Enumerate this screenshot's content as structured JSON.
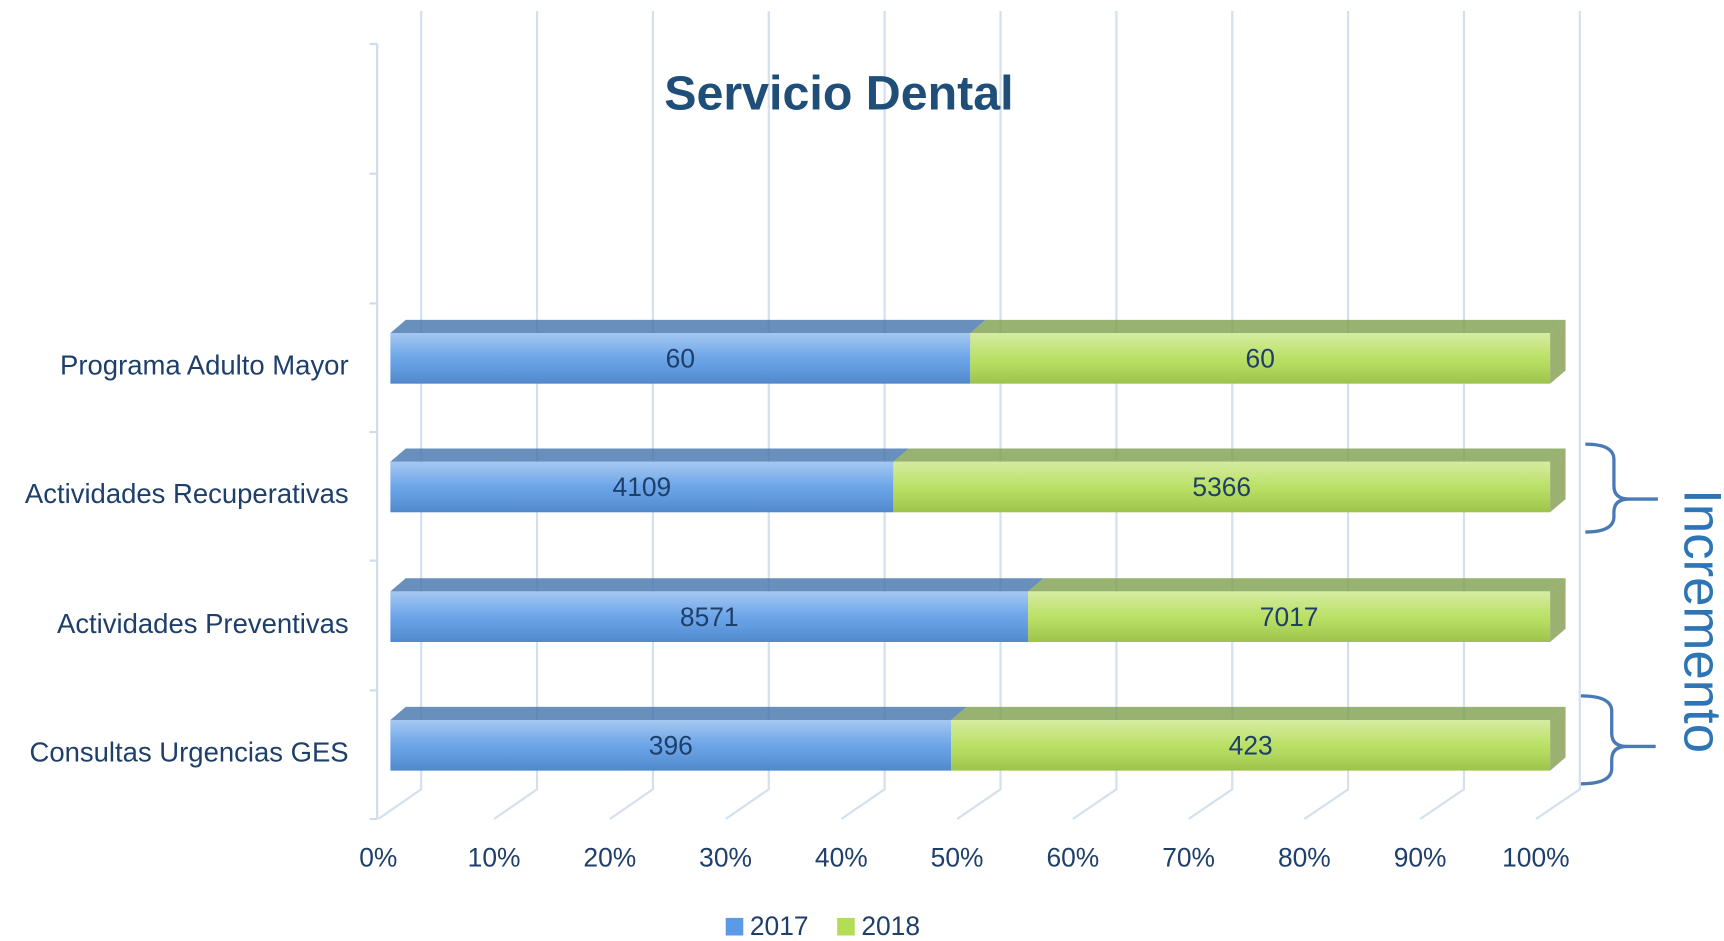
{
  "chart_data": {
    "type": "bar",
    "stacked": "percent",
    "orientation": "horizontal",
    "title": "Servicio Dental",
    "categories": [
      "Programa Adulto Mayor",
      "Actividades Recuperativas",
      "Actividades Preventivas",
      "Consultas Urgencias GES"
    ],
    "series": [
      {
        "name": "2017",
        "color": "#5b9be6",
        "values": [
          60,
          4109,
          8571,
          396
        ]
      },
      {
        "name": "2018",
        "color": "#b3dd55",
        "values": [
          60,
          5366,
          7017,
          423
        ]
      }
    ],
    "xlim": [
      0,
      100
    ],
    "xticks": [
      {
        "value": 0,
        "label": "0%"
      },
      {
        "value": 10,
        "label": "10%"
      },
      {
        "value": 20,
        "label": "20%"
      },
      {
        "value": 30,
        "label": "30%"
      },
      {
        "value": 40,
        "label": "40%"
      },
      {
        "value": 50,
        "label": "50%"
      },
      {
        "value": 60,
        "label": "60%"
      },
      {
        "value": 70,
        "label": "70%"
      },
      {
        "value": 80,
        "label": "80%"
      },
      {
        "value": 90,
        "label": "90%"
      },
      {
        "value": 100,
        "label": "100%"
      }
    ],
    "grid": true,
    "legend": "bottom",
    "annotation": "Incremento"
  }
}
